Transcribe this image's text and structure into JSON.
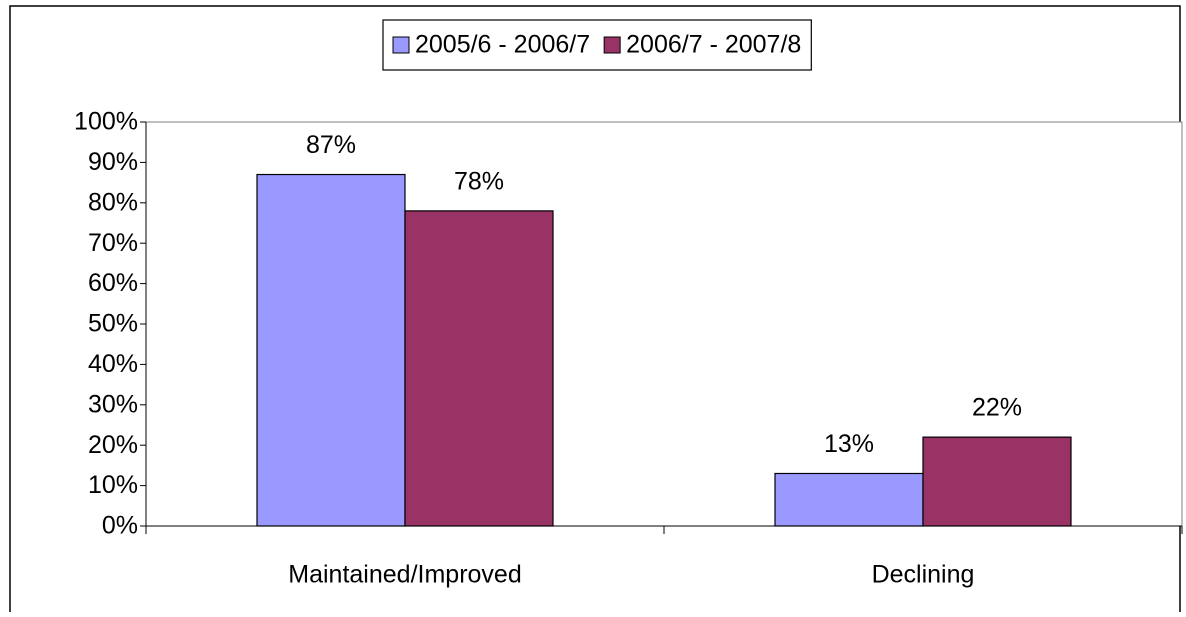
{
  "chart_data": {
    "type": "bar",
    "categories": [
      "Maintained/Improved",
      "Declining"
    ],
    "series": [
      {
        "name": "2005/6 - 2006/7",
        "color": "#9999ff",
        "values": [
          87,
          13
        ],
        "value_labels": [
          "87%",
          "13%"
        ]
      },
      {
        "name": "2006/7 - 2007/8",
        "color": "#993366",
        "values": [
          78,
          22
        ],
        "value_labels": [
          "78%",
          "22%"
        ]
      }
    ],
    "ylim": [
      0,
      100
    ],
    "yticks": [
      {
        "value": 0,
        "label": "0%"
      },
      {
        "value": 10,
        "label": "10%"
      },
      {
        "value": 20,
        "label": "20%"
      },
      {
        "value": 30,
        "label": "30%"
      },
      {
        "value": 40,
        "label": "40%"
      },
      {
        "value": 50,
        "label": "50%"
      },
      {
        "value": 60,
        "label": "60%"
      },
      {
        "value": 70,
        "label": "70%"
      },
      {
        "value": 80,
        "label": "80%"
      },
      {
        "value": 90,
        "label": "90%"
      },
      {
        "value": 100,
        "label": "100%"
      }
    ],
    "grid": false,
    "legend": "top"
  }
}
